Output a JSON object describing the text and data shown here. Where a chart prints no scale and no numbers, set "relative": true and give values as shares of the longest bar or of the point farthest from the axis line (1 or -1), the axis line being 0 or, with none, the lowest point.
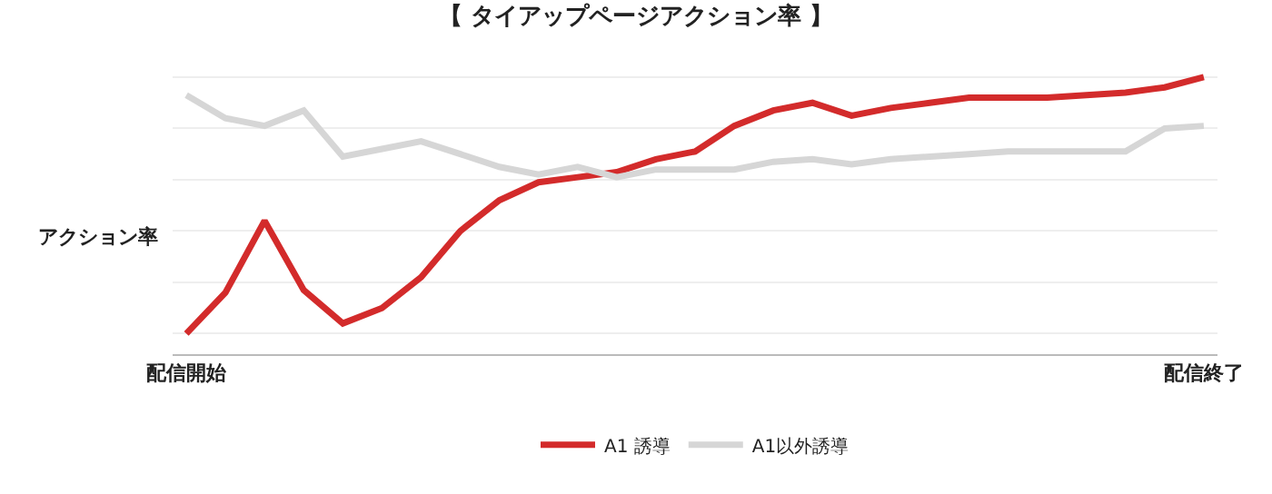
{
  "chart_data": {
    "type": "line",
    "title": "【 タイアップページアクション率 】",
    "ylabel": "アクション率",
    "relative": true,
    "grid": "y",
    "legend": "bottom",
    "marker": "none",
    "line_style": "solid",
    "categories": [
      "配信開始",
      null,
      null,
      null,
      null,
      null,
      null,
      null,
      null,
      null,
      null,
      null,
      null,
      null,
      null,
      null,
      null,
      null,
      null,
      null,
      null,
      null,
      null,
      null,
      null,
      null,
      "配信終了"
    ],
    "series": [
      {
        "name": "A1 誘導",
        "color": "#d32b2b",
        "values": [
          0,
          0.16,
          0.44,
          0.17,
          0.04,
          0.1,
          0.22,
          0.4,
          0.52,
          0.59,
          0.61,
          0.63,
          0.68,
          0.71,
          0.81,
          0.87,
          0.9,
          0.85,
          0.88,
          0.9,
          0.92,
          0.92,
          0.92,
          0.93,
          0.94,
          0.96,
          1
        ]
      },
      {
        "name": "A1以外誘導",
        "color": "#d6d6d6",
        "values": [
          0.93,
          0.84,
          0.81,
          0.87,
          0.69,
          0.72,
          0.75,
          0.7,
          0.65,
          0.62,
          0.65,
          0.61,
          0.64,
          0.64,
          0.64,
          0.67,
          0.68,
          0.66,
          0.68,
          0.69,
          0.7,
          0.71,
          0.71,
          0.71,
          0.71,
          0.8,
          0.81
        ]
      }
    ]
  }
}
